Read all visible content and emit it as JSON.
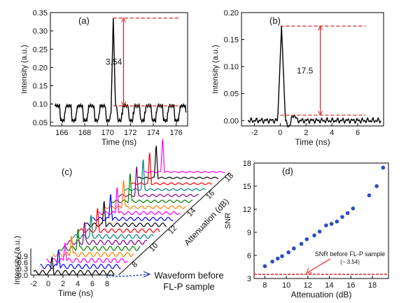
{
  "chart_data": [
    {
      "panel": "(a)",
      "type": "line",
      "xlabel": "Time (ns)",
      "ylabel": "Intensity (a.u.)",
      "xlim": [
        165,
        177
      ],
      "ylim": [
        0.04,
        0.35
      ],
      "xticks": [
        166,
        168,
        170,
        172,
        174,
        176
      ],
      "yticks": [
        0.05,
        0.1,
        0.15,
        0.2,
        0.25,
        0.3,
        0.35
      ],
      "series": [
        {
          "peak_time": 170.5,
          "peak_value": 0.335,
          "baseline_low": 0.055,
          "baseline_high": 0.095,
          "period": 1.0
        }
      ],
      "annotation": {
        "text": "3.54",
        "from": 0.095,
        "to": 0.335
      },
      "grid": false
    },
    {
      "panel": "(b)",
      "type": "line",
      "xlabel": "Time (ns)",
      "ylabel": "Intensity (a.u.)",
      "xlim": [
        -3,
        8
      ],
      "ylim": [
        -0.01,
        0.2
      ],
      "xticks": [
        -2,
        0,
        2,
        4,
        6
      ],
      "yticks": [
        0.0,
        0.05,
        0.1,
        0.15,
        0.2
      ],
      "series": [
        {
          "peak_time": 0.1,
          "peak_value": 0.175,
          "noise_level": 0.005
        }
      ],
      "annotation": {
        "text": "17.5",
        "from": 0.01,
        "to": 0.175
      },
      "grid": false
    },
    {
      "panel": "(c)",
      "type": "line",
      "xlabel": "Time (ns)",
      "ylabel": "Intensity (a.u.)",
      "zlabel": "Attenuation (dB)",
      "xticks": [
        -2,
        0,
        2,
        4,
        6,
        8
      ],
      "yticks": [
        0.0,
        0.3,
        0.6,
        0.9
      ],
      "ztick_labels": [
        "8",
        "10",
        "12",
        "14",
        "16",
        "18"
      ],
      "note": "Waveform before\nFL-P sample",
      "traces": 18,
      "trace_colors": [
        "#000000",
        "#0000ff",
        "#ff00ff",
        "#ff8000",
        "#008000",
        "#800080",
        "#008080",
        "#ff0000",
        "#000000",
        "#0000ff",
        "#ff00ff",
        "#ff8000",
        "#008000",
        "#800080",
        "#008080",
        "#ff0000",
        "#000000",
        "#ff00ff"
      ]
    },
    {
      "panel": "(d)",
      "type": "scatter",
      "xlabel": "Attenuation (dB)",
      "ylabel": "SNR",
      "xlim": [
        7,
        19.5
      ],
      "ylim": [
        3,
        18
      ],
      "xticks": [
        8,
        10,
        12,
        14,
        16,
        18
      ],
      "yticks": [
        3,
        6,
        9,
        12,
        15,
        18
      ],
      "x": [
        8.0,
        8.7,
        9.2,
        9.6,
        10.2,
        10.7,
        11.4,
        11.9,
        12.6,
        13.1,
        13.7,
        14.2,
        14.7,
        15.2,
        15.7,
        16.2,
        17.7,
        18.4,
        19.0
      ],
      "y": [
        4.6,
        5.2,
        5.6,
        5.9,
        6.4,
        6.9,
        7.5,
        8.1,
        8.6,
        9.1,
        9.9,
        10.1,
        10.4,
        11.0,
        11.5,
        12.1,
        13.8,
        15.0,
        17.4
      ],
      "reference": {
        "value": 3.54,
        "label": "SNR before FL-P sample",
        "sublabel": "(~ 3.54)"
      },
      "grid": false
    }
  ],
  "colors": {
    "annotation": "#e0201b",
    "points": "#2b4cc4",
    "axis": "#000000"
  }
}
